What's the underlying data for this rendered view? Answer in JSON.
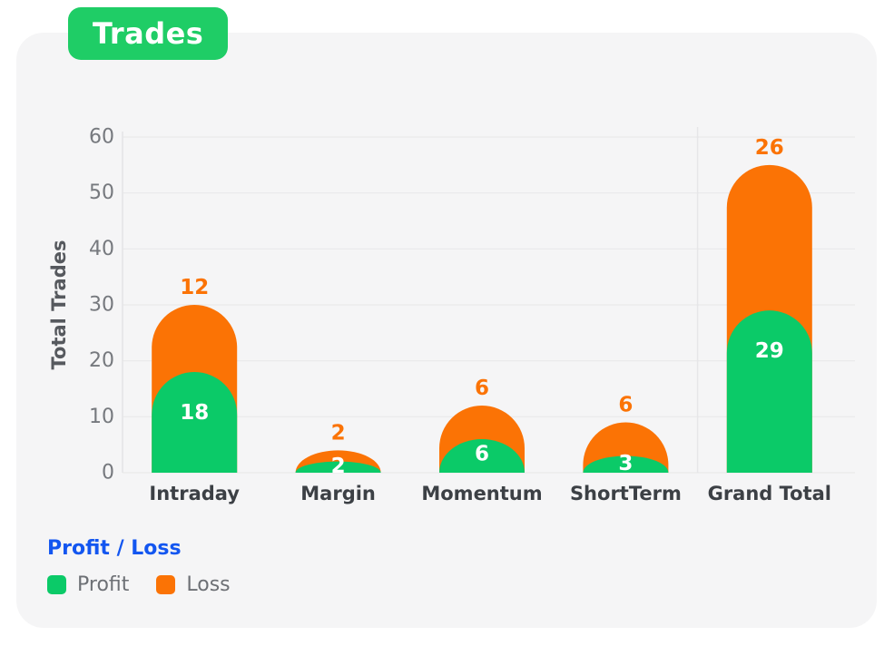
{
  "page": {
    "background": "#ffffff",
    "card_background": "#f5f5f6"
  },
  "header": {
    "badge_label": "Trades",
    "badge_color": "#1fcd66",
    "badge_text_color": "#ffffff"
  },
  "legend": {
    "title": "Profit / Loss",
    "title_color": "#1356f0",
    "items": [
      {
        "label": "Profit",
        "color": "#0bca68"
      },
      {
        "label": "Loss",
        "color": "#fb7305"
      }
    ]
  },
  "chart_data": {
    "type": "bar",
    "stacked": true,
    "title": "Trades",
    "ylabel": "Total Trades",
    "xlabel": "",
    "categories": [
      "Intraday",
      "Margin",
      "Momentum",
      "ShortTerm",
      "Grand Total"
    ],
    "series": [
      {
        "name": "Profit",
        "color": "#0bca68",
        "values": [
          18,
          2,
          6,
          3,
          29
        ]
      },
      {
        "name": "Loss",
        "color": "#fb7305",
        "values": [
          12,
          2,
          6,
          6,
          26
        ]
      }
    ],
    "stack_totals": [
      30,
      4,
      12,
      9,
      55
    ],
    "ylim": [
      0,
      60
    ],
    "yticks": [
      0,
      10,
      20,
      30,
      40,
      50,
      60
    ],
    "grid": "horizontal",
    "gridline_color": "#e9e9ea",
    "axis_line_color": "#e3e3e5",
    "separator_after_category_index": 3,
    "bar_shape": "rounded-top",
    "value_label_colors": {
      "Profit": "#ffffff",
      "Loss": "#fb7305"
    },
    "tick_label_color": "#76797e",
    "category_label_color": "#3c4045",
    "legend_position": "bottom-left"
  }
}
